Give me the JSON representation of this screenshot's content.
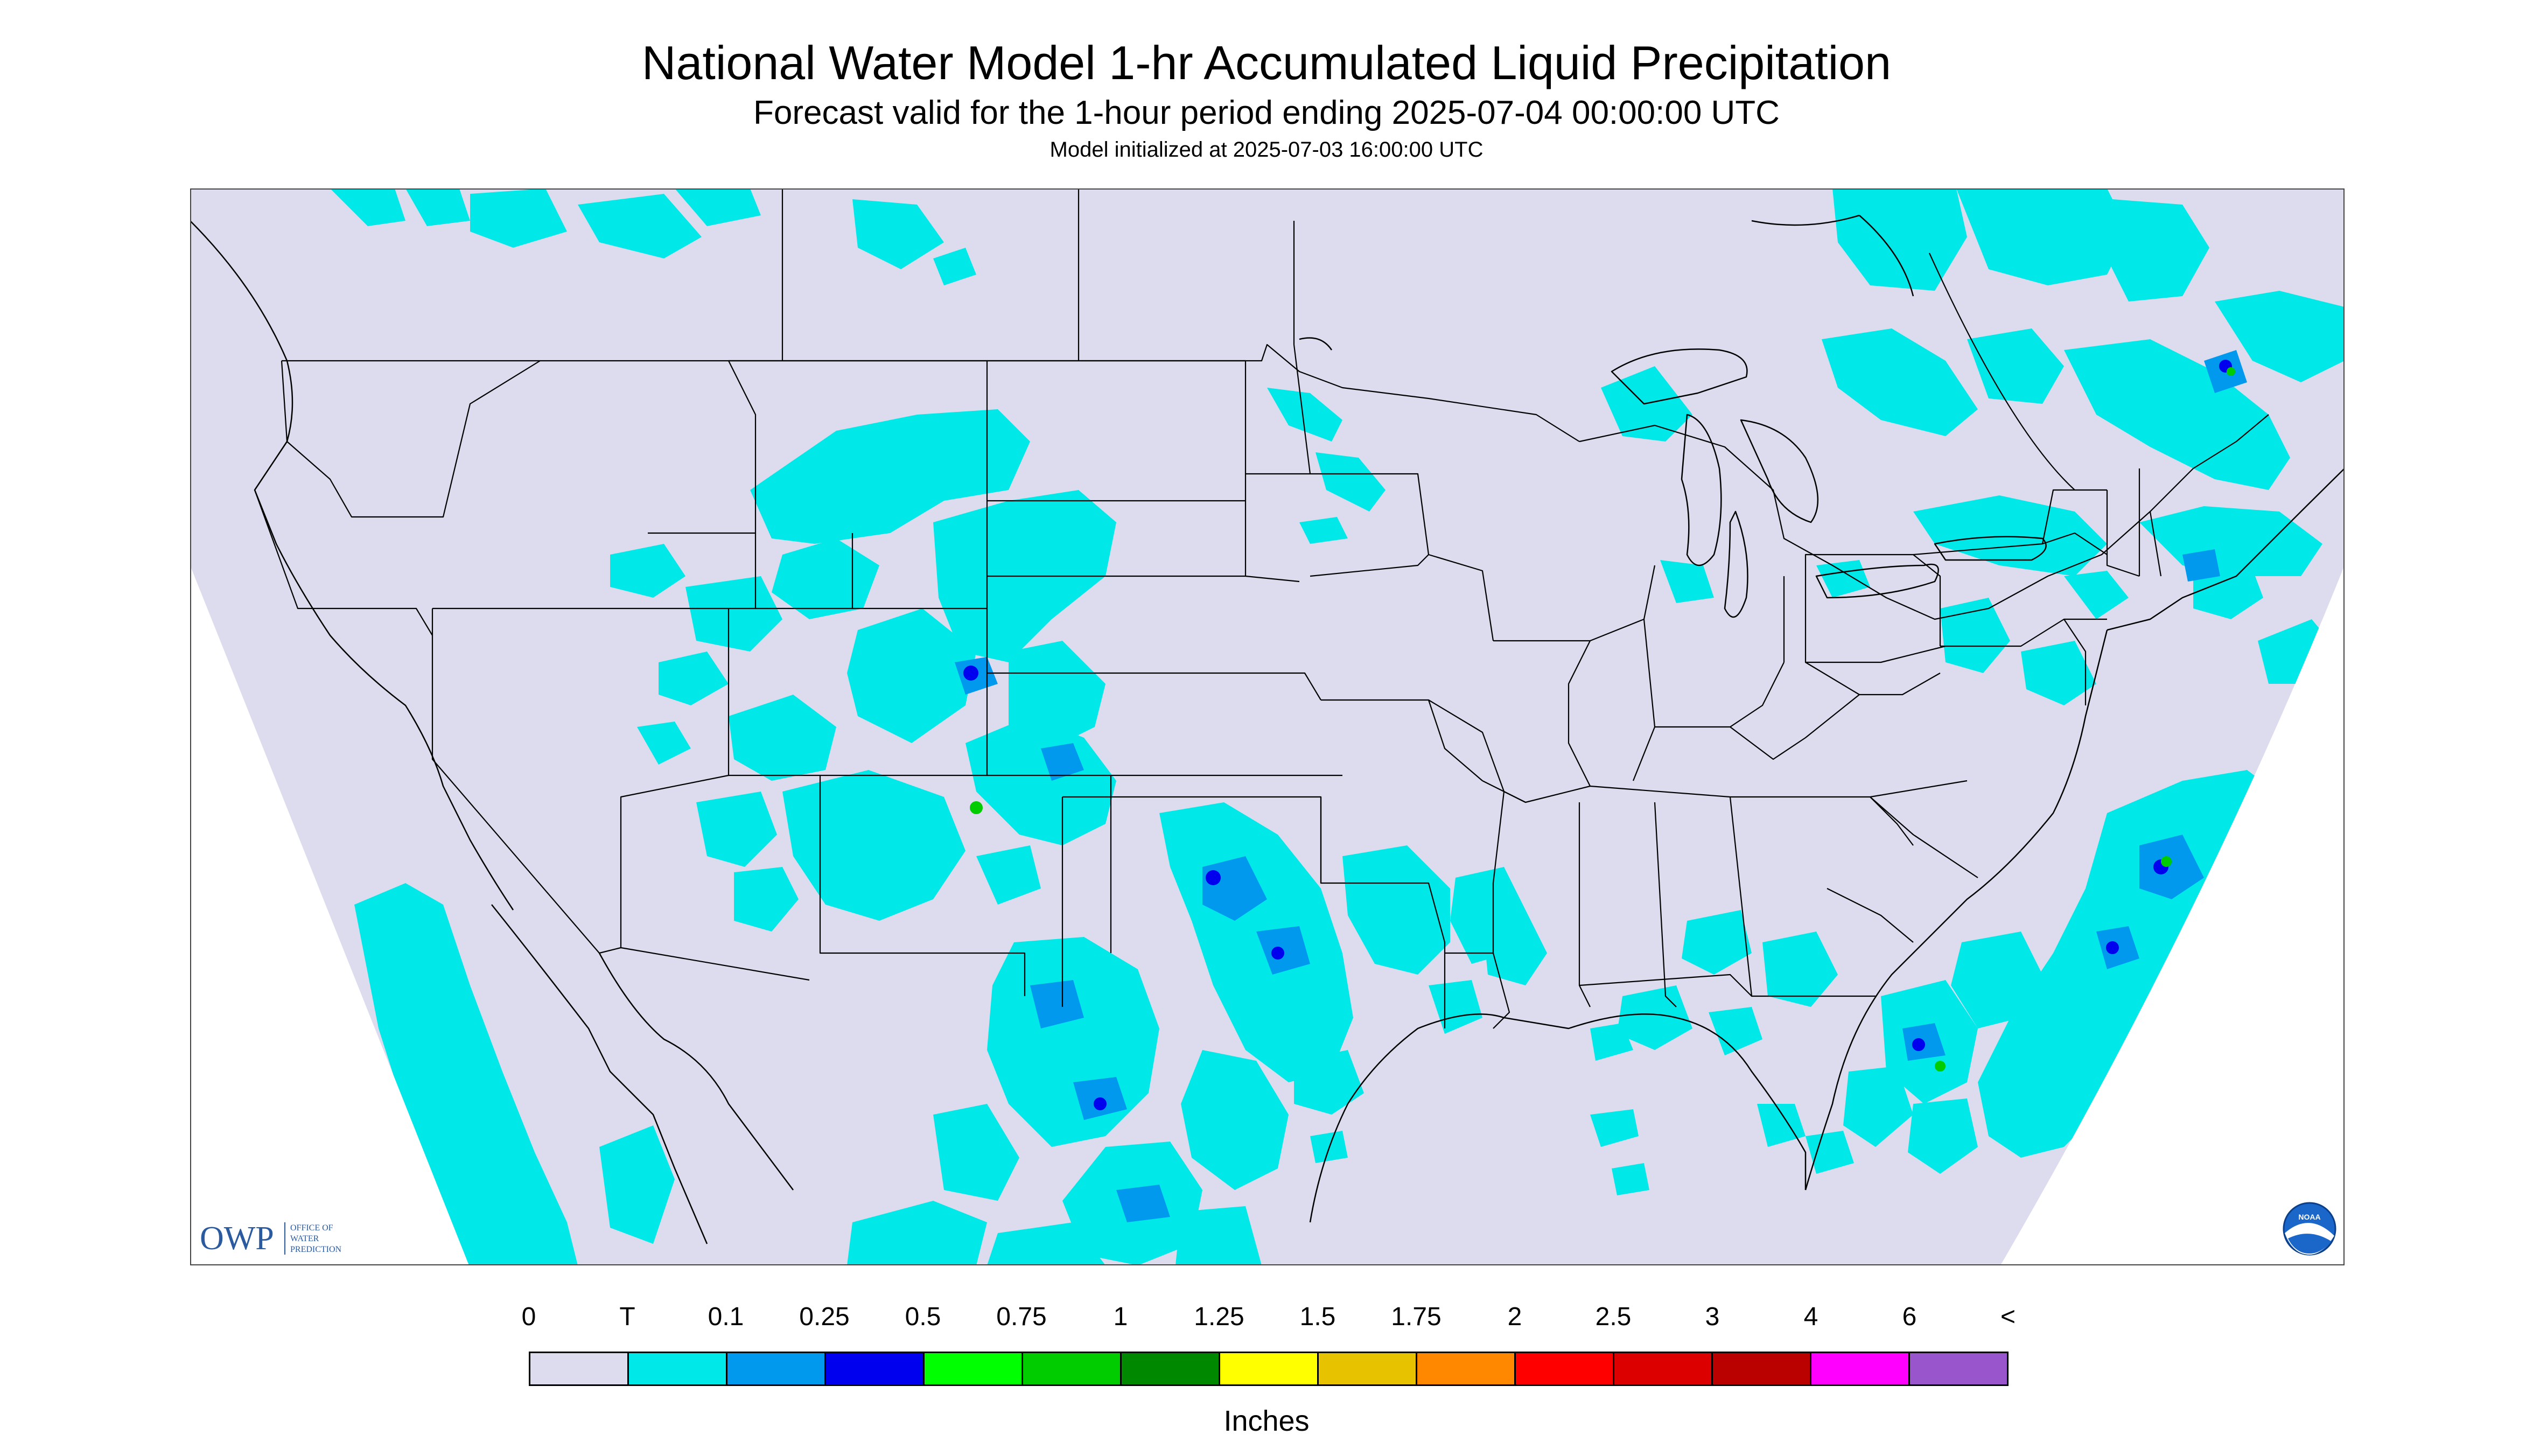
{
  "header": {
    "title": "National Water Model 1-hr Accumulated Liquid Precipitation",
    "subtitle": "Forecast valid for the 1-hour period ending 2025-07-04 00:00:00 UTC",
    "init": "Model initialized at 2025-07-03 16:00:00 UTC"
  },
  "logos": {
    "owp_abbr": "OWP",
    "owp_name_lines": [
      "OFFICE OF",
      "WATER",
      "PREDICTION"
    ],
    "noaa_text": "NOAA"
  },
  "legend": {
    "labels": [
      "0",
      "T",
      "0.1",
      "0.25",
      "0.5",
      "0.75",
      "1",
      "1.25",
      "1.5",
      "1.75",
      "2",
      "2.5",
      "3",
      "4",
      "6",
      "<"
    ],
    "colors": [
      "#dcdcee",
      "#00e8e8",
      "#0099ee",
      "#0000ee",
      "#00ff00",
      "#00cc00",
      "#008800",
      "#ffff00",
      "#e6c200",
      "#ff8800",
      "#ff0000",
      "#dd0000",
      "#bb0000",
      "#ff00ff",
      "#9955cc"
    ],
    "units": "Inches"
  },
  "map": {
    "background_color": "#dcdcee",
    "outside_color": "#ffffff",
    "trace_color": "#00e8e8",
    "light_color": "#0099ee",
    "medium_color": "#0000ee",
    "heavy_color": "#00cc00",
    "boundary_color": "#000000"
  }
}
